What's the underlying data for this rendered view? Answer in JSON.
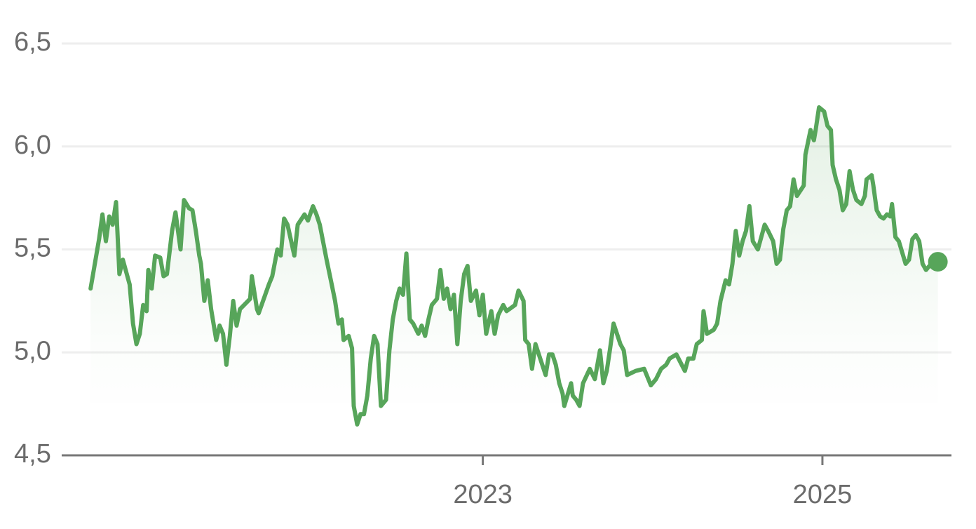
{
  "chart_data": {
    "type": "line",
    "color": "#57a55a",
    "grid": true,
    "xlim": [
      2020.52,
      2025.76
    ],
    "ylim": [
      4.5,
      6.5
    ],
    "xticks": [
      2023,
      2025
    ],
    "yticks": [
      {
        "value": 4.5,
        "label": "4,5"
      },
      {
        "value": 5.0,
        "label": "5,0"
      },
      {
        "value": 5.5,
        "label": "5,5"
      },
      {
        "value": 6.0,
        "label": "6,0"
      },
      {
        "value": 6.5,
        "label": "6,5"
      }
    ],
    "x": [
      2020.69,
      2020.74,
      2020.76,
      2020.78,
      2020.8,
      2020.82,
      2020.84,
      2020.86,
      2020.88,
      2020.92,
      2020.94,
      2020.96,
      2020.98,
      2021.0,
      2021.02,
      2021.03,
      2021.05,
      2021.07,
      2021.1,
      2021.12,
      2021.14,
      2021.17,
      2021.19,
      2021.22,
      2021.24,
      2021.27,
      2021.29,
      2021.31,
      2021.33,
      2021.34,
      2021.36,
      2021.38,
      2021.4,
      2021.43,
      2021.45,
      2021.47,
      2021.49,
      2021.51,
      2021.53,
      2021.55,
      2021.57,
      2021.63,
      2021.64,
      2021.67,
      2021.68,
      2021.74,
      2021.76,
      2021.79,
      2021.81,
      2021.83,
      2021.85,
      2021.89,
      2021.91,
      2021.95,
      2021.97,
      2022.0,
      2022.02,
      2022.04,
      2022.08,
      2022.11,
      2022.13,
      2022.15,
      2022.17,
      2022.18,
      2022.21,
      2022.23,
      2022.24,
      2022.26,
      2022.28,
      2022.3,
      2022.32,
      2022.34,
      2022.36,
      2022.38,
      2022.4,
      2022.43,
      2022.45,
      2022.47,
      2022.49,
      2022.51,
      2022.53,
      2022.55,
      2022.57,
      2022.59,
      2022.62,
      2022.64,
      2022.66,
      2022.68,
      2022.7,
      2022.73,
      2022.75,
      2022.77,
      2022.79,
      2022.81,
      2022.83,
      2022.85,
      2022.87,
      2022.89,
      2022.91,
      2022.93,
      2022.96,
      2022.98,
      2023.0,
      2023.02,
      2023.05,
      2023.07,
      2023.09,
      2023.12,
      2023.14,
      2023.19,
      2023.21,
      2023.24,
      2023.25,
      2023.27,
      2023.29,
      2023.31,
      2023.35,
      2023.37,
      2023.39,
      2023.41,
      2023.43,
      2023.45,
      2023.47,
      2023.48,
      2023.52,
      2023.53,
      2023.55,
      2023.57,
      2023.59,
      2023.63,
      2023.66,
      2023.69,
      2023.71,
      2023.73,
      2023.75,
      2023.77,
      2023.81,
      2023.83,
      2023.85,
      2023.9,
      2023.95,
      2023.99,
      2024.02,
      2024.05,
      2024.08,
      2024.1,
      2024.14,
      2024.19,
      2024.21,
      2024.24,
      2024.26,
      2024.29,
      2024.3,
      2024.32,
      2024.36,
      2024.38,
      2024.4,
      2024.43,
      2024.45,
      2024.47,
      2024.49,
      2024.51,
      2024.53,
      2024.55,
      2024.57,
      2024.59,
      2024.62,
      2024.66,
      2024.68,
      2024.71,
      2024.73,
      2024.75,
      2024.77,
      2024.79,
      2024.81,
      2024.83,
      2024.85,
      2024.89,
      2024.9,
      2024.93,
      2024.95,
      2024.96,
      2024.98,
      2025.01,
      2025.03,
      2025.05,
      2025.06,
      2025.08,
      2025.1,
      2025.12,
      2025.14,
      2025.16,
      2025.18,
      2025.2,
      2025.23,
      2025.25,
      2025.26,
      2025.29,
      2025.3,
      2025.32,
      2025.34,
      2025.36,
      2025.38,
      2025.4,
      2025.41,
      2025.43,
      2025.45,
      2025.49,
      2025.51,
      2025.53,
      2025.55,
      2025.57,
      2025.59,
      2025.61,
      2025.63,
      2025.68
    ],
    "values": [
      5.31,
      5.55,
      5.67,
      5.54,
      5.66,
      5.62,
      5.73,
      5.38,
      5.45,
      5.33,
      5.14,
      5.04,
      5.09,
      5.23,
      5.2,
      5.4,
      5.31,
      5.47,
      5.46,
      5.37,
      5.38,
      5.59,
      5.68,
      5.5,
      5.74,
      5.7,
      5.69,
      5.59,
      5.47,
      5.43,
      5.25,
      5.35,
      5.21,
      5.06,
      5.13,
      5.09,
      4.94,
      5.08,
      5.25,
      5.13,
      5.21,
      5.26,
      5.37,
      5.21,
      5.19,
      5.33,
      5.37,
      5.5,
      5.47,
      5.65,
      5.62,
      5.47,
      5.62,
      5.67,
      5.64,
      5.71,
      5.67,
      5.62,
      5.45,
      5.33,
      5.25,
      5.14,
      5.16,
      5.06,
      5.08,
      5.02,
      4.74,
      4.65,
      4.7,
      4.7,
      4.79,
      4.97,
      5.08,
      5.04,
      4.74,
      4.77,
      5.01,
      5.16,
      5.25,
      5.31,
      5.28,
      5.48,
      5.16,
      5.14,
      5.09,
      5.13,
      5.08,
      5.16,
      5.23,
      5.26,
      5.4,
      5.26,
      5.31,
      5.21,
      5.28,
      5.04,
      5.25,
      5.38,
      5.42,
      5.25,
      5.3,
      5.18,
      5.28,
      5.09,
      5.2,
      5.09,
      5.18,
      5.23,
      5.2,
      5.23,
      5.3,
      5.25,
      5.06,
      5.04,
      4.92,
      5.04,
      4.94,
      4.89,
      4.99,
      4.99,
      4.94,
      4.85,
      4.8,
      4.74,
      4.85,
      4.79,
      4.77,
      4.74,
      4.85,
      4.92,
      4.87,
      5.01,
      4.85,
      4.91,
      5.02,
      5.14,
      5.04,
      5.01,
      4.89,
      4.91,
      4.92,
      4.84,
      4.87,
      4.92,
      4.94,
      4.97,
      4.99,
      4.91,
      4.97,
      4.97,
      5.04,
      5.06,
      5.2,
      5.09,
      5.11,
      5.14,
      5.25,
      5.35,
      5.33,
      5.43,
      5.59,
      5.47,
      5.54,
      5.59,
      5.71,
      5.54,
      5.5,
      5.62,
      5.59,
      5.54,
      5.43,
      5.45,
      5.6,
      5.69,
      5.71,
      5.84,
      5.76,
      5.81,
      5.96,
      6.08,
      6.03,
      6.08,
      6.19,
      6.17,
      6.1,
      6.08,
      5.91,
      5.84,
      5.79,
      5.69,
      5.72,
      5.88,
      5.79,
      5.74,
      5.72,
      5.76,
      5.84,
      5.86,
      5.81,
      5.69,
      5.66,
      5.65,
      5.67,
      5.66,
      5.72,
      5.56,
      5.54,
      5.43,
      5.45,
      5.55,
      5.57,
      5.54,
      5.43,
      5.4,
      5.42,
      5.44
    ]
  }
}
